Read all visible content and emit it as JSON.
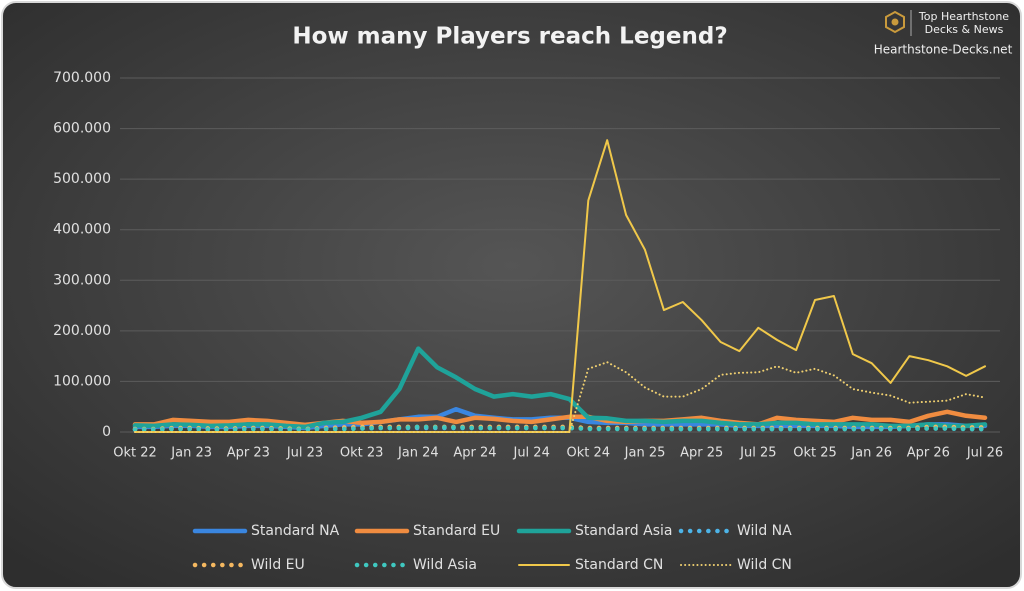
{
  "chart_data": {
    "type": "line",
    "title": "How many Players reach Legend?",
    "branding": {
      "line1": "Top Hearthstone",
      "line2": "Decks & News",
      "site": "Hearthstone-Decks.net"
    },
    "categories": [
      "Okt 22",
      null,
      null,
      "Jan 23",
      null,
      null,
      "Apr 23",
      null,
      null,
      "Jul 23",
      null,
      null,
      "Okt 23",
      null,
      null,
      "Jan 24",
      null,
      null,
      "Apr 24",
      null,
      null,
      "Jul 24",
      null,
      null,
      "Okt 24",
      null,
      null,
      "Jan 25",
      null,
      null,
      "Apr 25",
      null,
      null,
      "Jul 25",
      null,
      null,
      "Okt 25",
      null,
      null,
      "Jan 26",
      null,
      null,
      "Apr 26",
      null,
      null,
      "Jul 26"
    ],
    "ylim": [
      0,
      700000
    ],
    "yticks": [
      0,
      {
        "value": 100000,
        "label": "100.000"
      },
      {
        "value": 200000,
        "label": "200.000"
      },
      {
        "value": 300000,
        "label": "300.000"
      },
      {
        "value": 400000,
        "label": "400.000"
      },
      {
        "value": 500000,
        "label": "500.000"
      },
      {
        "value": 600000,
        "label": "600.000"
      },
      {
        "value": 700000,
        "label": "700.000"
      }
    ],
    "grid": true,
    "legend": "bottom",
    "series": [
      {
        "name": "Standard NA",
        "color": "#3a86e0",
        "style": "solid",
        "weight": "thick",
        "values": [
          10000,
          10000,
          12000,
          12000,
          10000,
          10000,
          12000,
          12000,
          10000,
          8000,
          12000,
          15000,
          15000,
          20000,
          25000,
          30000,
          30000,
          45000,
          32000,
          28000,
          25000,
          25000,
          28000,
          28000,
          20000,
          18000,
          18000,
          15000,
          15000,
          15000,
          15000,
          15000,
          12000,
          12000,
          12000,
          12000,
          12000,
          12000,
          10000,
          10000,
          10000,
          12000,
          15000,
          15000,
          12000,
          12000
        ]
      },
      {
        "name": "Standard EU",
        "color": "#f08c40",
        "style": "solid",
        "weight": "thick",
        "values": [
          15000,
          15000,
          24000,
          22000,
          20000,
          20000,
          24000,
          22000,
          18000,
          14000,
          18000,
          22000,
          18000,
          20000,
          25000,
          25000,
          28000,
          20000,
          28000,
          26000,
          22000,
          20000,
          25000,
          30000,
          30000,
          22000,
          20000,
          22000,
          22000,
          25000,
          28000,
          22000,
          18000,
          15000,
          28000,
          24000,
          22000,
          20000,
          28000,
          24000,
          24000,
          20000,
          32000,
          40000,
          32000,
          28000
        ]
      },
      {
        "name": "Standard Asia",
        "color": "#1fa39a",
        "style": "solid",
        "weight": "thick",
        "values": [
          13000,
          12000,
          15000,
          14000,
          12000,
          13000,
          15000,
          15000,
          12000,
          10000,
          18000,
          20000,
          28000,
          40000,
          85000,
          165000,
          128000,
          108000,
          85000,
          70000,
          75000,
          70000,
          75000,
          65000,
          28000,
          27000,
          22000,
          22000,
          20000,
          22000,
          22000,
          18000,
          15000,
          15000,
          18000,
          18000,
          15000,
          15000,
          15000,
          15000,
          12000,
          12000,
          15000,
          12000,
          12000,
          15000
        ]
      },
      {
        "name": "Wild NA",
        "color": "#4db4e8",
        "style": "dotted",
        "weight": "thick",
        "values": [
          5000,
          5000,
          6000,
          6000,
          5000,
          5000,
          6000,
          6000,
          5000,
          5000,
          6000,
          6000,
          7000,
          8000,
          8000,
          8000,
          8000,
          8000,
          8000,
          8000,
          8000,
          8000,
          8000,
          8000,
          7000,
          7000,
          6000,
          6000,
          6000,
          6000,
          6000,
          6000,
          6000,
          6000,
          6000,
          6000,
          6000,
          6000,
          6000,
          6000,
          6000,
          6000,
          7000,
          7000,
          6000,
          6000
        ]
      },
      {
        "name": "Wild EU",
        "color": "#f5b860",
        "style": "dotted",
        "weight": "thick",
        "values": [
          6000,
          6000,
          8000,
          8000,
          7000,
          7000,
          8000,
          8000,
          7000,
          6000,
          8000,
          9000,
          10000,
          10000,
          10000,
          10000,
          10000,
          10000,
          10000,
          10000,
          10000,
          10000,
          10000,
          10000,
          8000,
          8000,
          8000,
          8000,
          8000,
          8000,
          8000,
          8000,
          8000,
          8000,
          8000,
          8000,
          8000,
          8000,
          8000,
          8000,
          8000,
          8000,
          10000,
          10000,
          9000,
          9000
        ]
      },
      {
        "name": "Wild Asia",
        "color": "#3fc8c0",
        "style": "dotted",
        "weight": "thick",
        "values": [
          5000,
          5000,
          6000,
          6000,
          5000,
          5000,
          6000,
          6000,
          5000,
          5000,
          6000,
          6000,
          7000,
          8000,
          8000,
          10000,
          9000,
          9000,
          8000,
          8000,
          8000,
          8000,
          8000,
          8000,
          6000,
          6000,
          6000,
          6000,
          6000,
          6000,
          6000,
          6000,
          6000,
          6000,
          6000,
          6000,
          6000,
          6000,
          6000,
          6000,
          6000,
          6000,
          7000,
          7000,
          6000,
          6000
        ]
      },
      {
        "name": "Standard CN",
        "color": "#f0c84a",
        "style": "solid",
        "weight": "thin",
        "values": [
          0,
          0,
          0,
          0,
          0,
          0,
          0,
          0,
          0,
          0,
          0,
          0,
          0,
          0,
          0,
          0,
          0,
          0,
          0,
          0,
          0,
          0,
          0,
          0,
          458000,
          577000,
          429000,
          360000,
          241000,
          257000,
          221000,
          178000,
          160000,
          206000,
          182000,
          162000,
          261000,
          269000,
          154000,
          136000,
          97000,
          150000,
          142000,
          130000,
          111000,
          130000
        ]
      },
      {
        "name": "Wild CN",
        "color": "#f0d070",
        "style": "dotted",
        "weight": "thin",
        "values": [
          0,
          0,
          0,
          0,
          0,
          0,
          0,
          0,
          0,
          0,
          0,
          0,
          0,
          0,
          0,
          0,
          0,
          0,
          0,
          0,
          0,
          0,
          0,
          0,
          125000,
          138000,
          118000,
          88000,
          70000,
          70000,
          85000,
          113000,
          117000,
          118000,
          130000,
          117000,
          125000,
          112000,
          85000,
          78000,
          72000,
          58000,
          60000,
          62000,
          75000,
          68000
        ]
      }
    ]
  }
}
